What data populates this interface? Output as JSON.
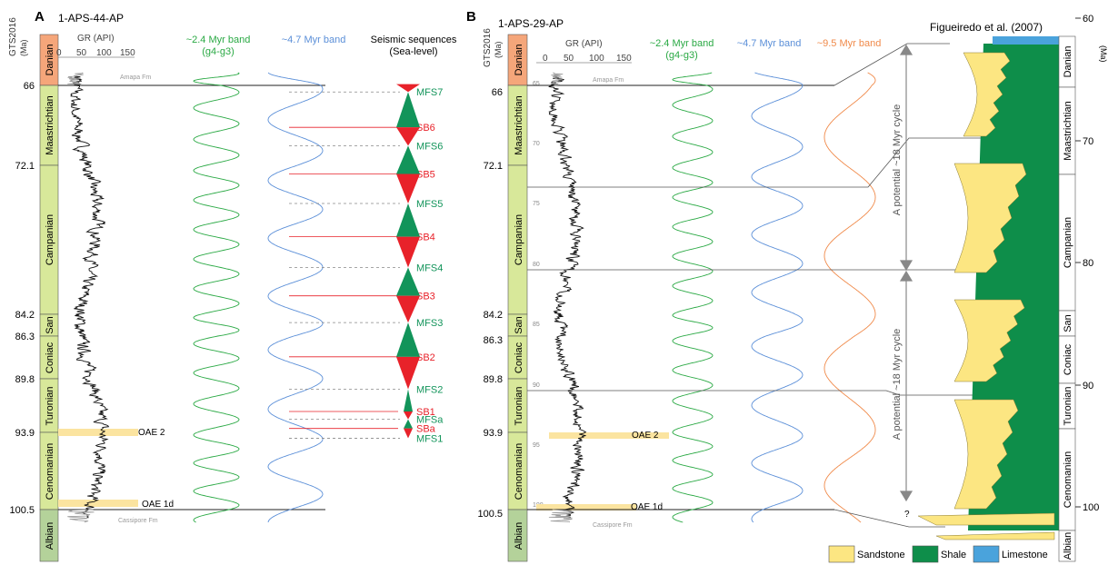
{
  "colors": {
    "danian": "#f5a67a",
    "cretaceous_stage": "#d8e89a",
    "albian": "#b4d29a",
    "oae": "#fbe4a0",
    "green_band": "#2aa944",
    "blue_band": "#5b8fd8",
    "orange_band": "#f08a4a",
    "sb_red": "#e8222a",
    "mfs_green": "#12945a",
    "sandstone": "#fce682",
    "shale": "#0e8e4a",
    "limestone": "#4aa3dc",
    "gr_black": "#111111",
    "gr_gray": "#9a9a9a"
  },
  "panel_a": {
    "letter": "A",
    "well": "1-APS-44-AP",
    "gts_label": "GTS2016",
    "ma_label": "(Ma)",
    "gr_label": "GR (API)",
    "gr_ticks": [
      "0",
      "50",
      "100",
      "150"
    ],
    "band1_title": "~2.4 Myr band",
    "band1_sub": "(g4-g3)",
    "band2_title": "~4.7 Myr band",
    "seq_title": "Seismic sequences",
    "seq_sub": "(Sea-level)",
    "formation_top": "Amapa Fm",
    "formation_bottom": "Cassipore Fm",
    "stages": [
      "Danian",
      "Maastrichtian",
      "Campanian",
      "San",
      "Coniac",
      "Turonian",
      "Cenomanian",
      "Albian"
    ],
    "age_ticks": [
      "66",
      "72.1",
      "84.2",
      "86.3",
      "89.8",
      "93.9",
      "100.5"
    ],
    "oae2": "OAE 2",
    "oae1d": "OAE 1d",
    "sequences": [
      "MFS7",
      "SB6",
      "MFS6",
      "SB5",
      "MFS5",
      "SB4",
      "MFS4",
      "SB3",
      "MFS3",
      "SB2",
      "MFS2",
      "SB1",
      "MFSa",
      "SBa",
      "MFS1"
    ]
  },
  "panel_b": {
    "letter": "B",
    "well": "1-APS-29-AP",
    "gts_label": "GTS2016",
    "ma_label": "(Ma)",
    "gr_label": "GR (API)",
    "gr_ticks": [
      "0",
      "50",
      "100",
      "150"
    ],
    "band1_title": "~2.4 Myr band",
    "band1_sub": "(g4-g3)",
    "band2_title": "~4.7 Myr band",
    "band3_title": "~9.5 Myr band",
    "ref_title": "Figueiredo et al. (2007)",
    "formation_top": "Amapa Fm",
    "formation_bottom": "Cassipore Fm",
    "stages": [
      "Danian",
      "Maastrichtian",
      "Campanian",
      "San",
      "Coniac",
      "Turonian",
      "Cenomanian",
      "Albian"
    ],
    "age_ticks": [
      "66",
      "72.1",
      "84.2",
      "86.3",
      "89.8",
      "93.9",
      "100.5"
    ],
    "inner_ticks": [
      "65",
      "70",
      "75",
      "80",
      "85",
      "90",
      "95",
      "100"
    ],
    "right_ticks": [
      "60",
      "70",
      "80",
      "90",
      "100"
    ],
    "right_ma": "(Ma)",
    "right_stages": [
      "Danian",
      "Maastrichtian",
      "Campanian",
      "San",
      "Coniac",
      "Turonian",
      "Cenomanian",
      "Albian"
    ],
    "cycle_label": "A potential ~18 Myr cycle",
    "question": "?",
    "oae2": "OAE 2",
    "oae1d": "OAE 1d"
  },
  "legend": {
    "sandstone": "Sandstone",
    "shale": "Shale",
    "limestone": "Limestone"
  },
  "chart_data": [
    {
      "type": "line",
      "panel": "A",
      "title": "1-APS-44-AP",
      "y_axis": "GTS2016 (Ma)",
      "ylim": [
        64,
        101.5
      ],
      "stage_boundaries_ma": [
        66,
        72.1,
        84.2,
        86.3,
        89.8,
        93.9,
        100.5
      ],
      "series": [
        {
          "name": "GR (API)",
          "xlim": [
            0,
            150
          ]
        },
        {
          "name": "~2.4 Myr band (g4-g3)",
          "period_myr": 2.4
        },
        {
          "name": "~4.7 Myr band",
          "period_myr": 4.7
        }
      ],
      "sequence_surfaces_ma": {
        "MFS7": 66.5,
        "SB6": 69.2,
        "MFS6": 70.6,
        "SB5": 72.8,
        "MFS5": 75.2,
        "SB4": 77.9,
        "MFS4": 80.4,
        "SB3": 82.7,
        "MFS3": 85.0,
        "SB2": 88.0,
        "MFS2": 90.6,
        "SB1": 92.3,
        "MFSa": 92.9,
        "SBa": 93.6,
        "MFS1": 94.4
      },
      "events_ma": {
        "OAE 2": 93.9,
        "OAE 1d": 100.0
      }
    },
    {
      "type": "line",
      "panel": "B",
      "title": "1-APS-29-AP",
      "y_axis": "GTS2016 (Ma)",
      "ylim": [
        64,
        101.5
      ],
      "stage_boundaries_ma": [
        66,
        72.1,
        84.2,
        86.3,
        89.8,
        93.9,
        100.5
      ],
      "series": [
        {
          "name": "GR (API)",
          "xlim": [
            0,
            150
          ]
        },
        {
          "name": "~2.4 Myr band (g4-g3)",
          "period_myr": 2.4
        },
        {
          "name": "~4.7 Myr band",
          "period_myr": 4.7
        },
        {
          "name": "~9.5 Myr band",
          "period_myr": 9.5
        }
      ],
      "events_ma": {
        "OAE 2": 93.9,
        "OAE 1d": 100.0
      }
    },
    {
      "type": "area",
      "panel": "B-right",
      "title": "Figueiredo et al. (2007)",
      "y_axis": "(Ma)",
      "ylim": [
        60,
        102
      ],
      "series": [
        "Sandstone",
        "Shale",
        "Limestone"
      ],
      "annotations": [
        "A potential ~18 Myr cycle",
        "A potential ~18 Myr cycle"
      ]
    }
  ]
}
